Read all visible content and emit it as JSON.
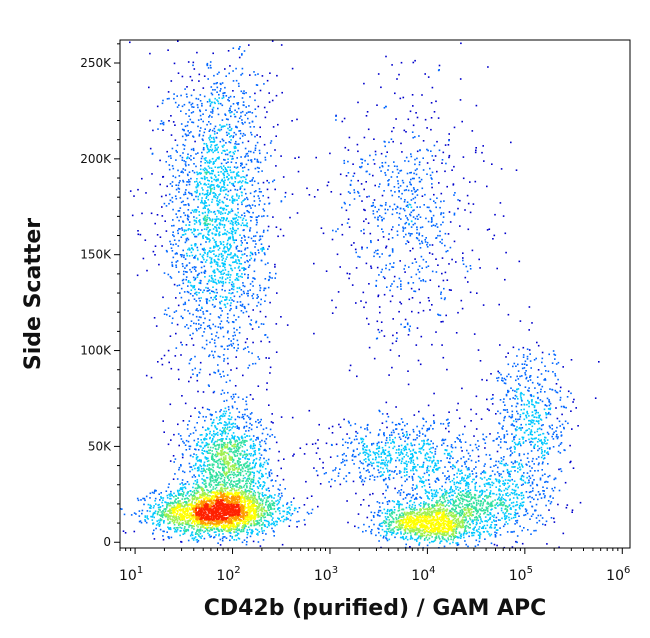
{
  "chart_data": {
    "type": "scatter",
    "subtype": "flow-cytometry-density-dot-plot",
    "title": "",
    "xlabel": "CD42b (purified) / GAM APC",
    "ylabel": "Side Scatter",
    "x_scale": "log",
    "xlim": [
      7,
      1200000
    ],
    "ylim": [
      -3000,
      262000
    ],
    "grid": false,
    "legend": "none",
    "x_ticks": [
      {
        "value": 10,
        "base": "10",
        "exp": "1"
      },
      {
        "value": 100,
        "base": "10",
        "exp": "2"
      },
      {
        "value": 1000,
        "base": "10",
        "exp": "3"
      },
      {
        "value": 10000,
        "base": "10",
        "exp": "4"
      },
      {
        "value": 100000,
        "base": "10",
        "exp": "5"
      },
      {
        "value": 1000000,
        "base": "10",
        "exp": "6"
      }
    ],
    "y_ticks": [
      {
        "value": 0,
        "label": "0"
      },
      {
        "value": 50000,
        "label": "50K"
      },
      {
        "value": 100000,
        "label": "100K"
      },
      {
        "value": 150000,
        "label": "150K"
      },
      {
        "value": 200000,
        "label": "200K"
      },
      {
        "value": 250000,
        "label": "250K"
      }
    ],
    "density_colors": [
      "#0000cc",
      "#0066ff",
      "#00c8ff",
      "#33e0a0",
      "#a0f050",
      "#ffff00",
      "#ff9900",
      "#ff2200"
    ],
    "populations": [
      {
        "center_log10_x": 1.85,
        "center_y": 16000,
        "spread_log10_x": 0.32,
        "spread_y": 6000,
        "points": 2600
      },
      {
        "center_log10_x": 1.95,
        "center_y": 40000,
        "spread_log10_x": 0.22,
        "spread_y": 14000,
        "points": 1300
      },
      {
        "center_log10_x": 1.85,
        "center_y": 170000,
        "spread_log10_x": 0.28,
        "spread_y": 42000,
        "points": 2200
      },
      {
        "center_log10_x": 4.0,
        "center_y": 10000,
        "spread_log10_x": 0.25,
        "spread_y": 5000,
        "points": 1100
      },
      {
        "center_log10_x": 4.5,
        "center_y": 20000,
        "spread_log10_x": 0.35,
        "spread_y": 9000,
        "points": 900
      },
      {
        "center_log10_x": 5.05,
        "center_y": 60000,
        "spread_log10_x": 0.22,
        "spread_y": 20000,
        "points": 650
      },
      {
        "center_log10_x": 3.75,
        "center_y": 45000,
        "spread_log10_x": 0.4,
        "spread_y": 10000,
        "points": 700
      },
      {
        "center_log10_x": 3.8,
        "center_y": 170000,
        "spread_log10_x": 0.38,
        "spread_y": 35000,
        "points": 750
      }
    ]
  }
}
